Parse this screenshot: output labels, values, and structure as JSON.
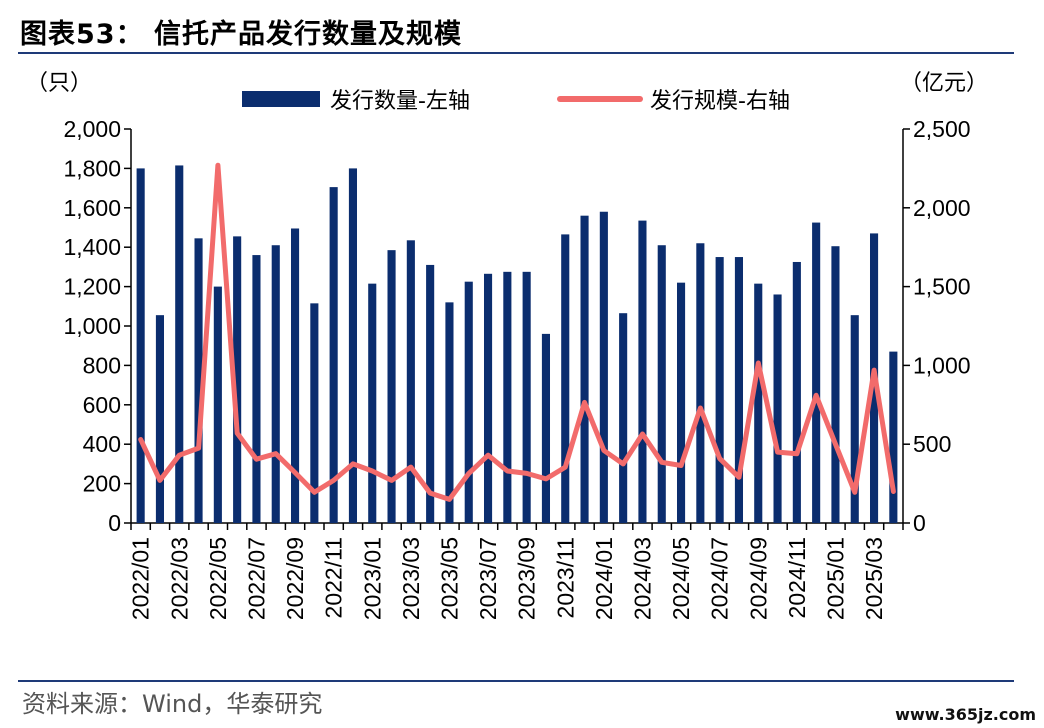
{
  "header": {
    "title": "图表53： 信托产品发行数量及规模"
  },
  "footer": {
    "source": "资料来源：Wind，华泰研究",
    "watermark": "www.365jz.com"
  },
  "chart_data": {
    "type": "bar+line",
    "y_left_unit": "（只）",
    "y_right_unit": "（亿元）",
    "ylim_left": [
      0,
      2000
    ],
    "ylim_right": [
      0,
      2500
    ],
    "yticks_left": [
      "0",
      "200",
      "400",
      "600",
      "800",
      "1,000",
      "1,200",
      "1,400",
      "1,600",
      "1,800",
      "2,000"
    ],
    "yticks_right": [
      "0",
      "500",
      "1,000",
      "1,500",
      "2,000",
      "2,500"
    ],
    "x_tick_labels": [
      "2022/01",
      "2022/03",
      "2022/05",
      "2022/07",
      "2022/09",
      "2022/11",
      "2023/01",
      "2023/03",
      "2023/05",
      "2023/07",
      "2023/09",
      "2023/11",
      "2024/01",
      "2024/03",
      "2024/05",
      "2024/07",
      "2024/09",
      "2024/11",
      "2025/01",
      "2025/03"
    ],
    "categories": [
      "2022/01",
      "2022/02",
      "2022/03",
      "2022/04",
      "2022/05",
      "2022/06",
      "2022/07",
      "2022/08",
      "2022/09",
      "2022/10",
      "2022/11",
      "2022/12",
      "2023/01",
      "2023/02",
      "2023/03",
      "2023/04",
      "2023/05",
      "2023/06",
      "2023/07",
      "2023/08",
      "2023/09",
      "2023/10",
      "2023/11",
      "2023/12",
      "2024/01",
      "2024/02",
      "2024/03",
      "2024/04",
      "2024/05",
      "2024/06",
      "2024/07",
      "2024/08",
      "2024/09",
      "2024/10",
      "2024/11",
      "2024/12",
      "2025/01",
      "2025/02",
      "2025/03",
      "2025/04"
    ],
    "series": [
      {
        "name": "发行数量-左轴",
        "type": "bar",
        "axis": "left",
        "color": "#0b2d6e",
        "values": [
          1800,
          1055,
          1815,
          1445,
          1200,
          1455,
          1360,
          1410,
          1495,
          1115,
          1705,
          1800,
          1215,
          1385,
          1435,
          1310,
          1120,
          1225,
          1265,
          1275,
          1275,
          960,
          1465,
          1560,
          1580,
          1065,
          1535,
          1410,
          1220,
          1420,
          1350,
          1350,
          1215,
          1160,
          1325,
          1525,
          1405,
          1055,
          1470,
          870
        ]
      },
      {
        "name": "发行规模-右轴",
        "type": "line",
        "axis": "right",
        "color": "#f26b6b",
        "values": [
          530,
          270,
          430,
          475,
          2270,
          570,
          405,
          440,
          320,
          195,
          270,
          375,
          330,
          270,
          355,
          190,
          150,
          315,
          430,
          330,
          315,
          280,
          355,
          765,
          460,
          375,
          565,
          385,
          365,
          730,
          410,
          290,
          1015,
          450,
          440,
          810,
          500,
          195,
          970,
          200
        ]
      }
    ],
    "grid": false,
    "legend_position": "top"
  }
}
